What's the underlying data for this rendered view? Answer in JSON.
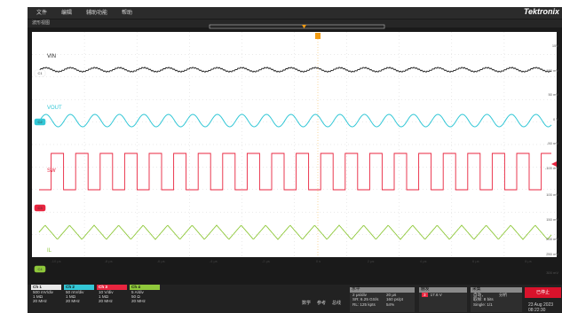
{
  "menu": {
    "file": "文件",
    "edit": "编辑",
    "assist": "辅助功能",
    "help": "帮助",
    "brand": "Tektronix"
  },
  "view_title": "波形视图",
  "channels": [
    {
      "label": "VIN",
      "badge": "C1",
      "color": "#e8e8e8"
    },
    {
      "label": "VOUT",
      "badge": "C2",
      "color": "#33c7d6"
    },
    {
      "label": "SW",
      "badge": "C3",
      "color": "#e8253f"
    },
    {
      "label": "IL",
      "badge": "C4",
      "color": "#8fc83b"
    }
  ],
  "right_scale": [
    "15V",
    "100 mV",
    "50 mV",
    "0 V",
    "-50 mV",
    "-100 mV",
    "100 mV",
    "150 mV",
    "200 mV",
    "250 mV",
    "300 mV"
  ],
  "time_labels": [
    "-10 μs",
    "-8 μs",
    "-6 μs",
    "-4 μs",
    "-2 μs",
    "0 s",
    "2 μs",
    "4 μs",
    "6 μs",
    "8 μs"
  ],
  "bottom": {
    "ch1": {
      "hdr": "Ch 1",
      "l1": "500 mV/div",
      "l2": "1 MΩ",
      "l3": "20 MHz"
    },
    "ch2": {
      "hdr": "Ch 2",
      "l1": "50 mV/div",
      "l2": "1 MΩ",
      "l3": "20 MHz"
    },
    "ch3": {
      "hdr": "Ch 3",
      "l1": "10 V/div",
      "l2": "1 MΩ",
      "l3": "20 MHz"
    },
    "ch4": {
      "hdr": "Ch 4",
      "l1": "5 A/div",
      "l2": "50 Ω",
      "l3": "20 MHz"
    },
    "buttons": {
      "math": "数学",
      "ref": "参考",
      "bus": "总线"
    },
    "horizontal": {
      "hdr": "水平",
      "l1": "2 μs/div",
      "l1b": "20 μs",
      "l2": "SR: 6.25 GS/s",
      "l2b": "160 ps/pt",
      "l3": "RL: 125 kpts",
      "l3b": "54%"
    },
    "trigger": {
      "hdr": "触发",
      "l1": "17.6 V"
    },
    "acquire": {
      "hdr": "采集",
      "l1": "自动，",
      "l1b": "分析",
      "l2": "取样: 8 bits",
      "l3": "Single: 1/1"
    },
    "stop": "已停止",
    "date": "23 Aug 2023",
    "time": "08:22:30"
  }
}
